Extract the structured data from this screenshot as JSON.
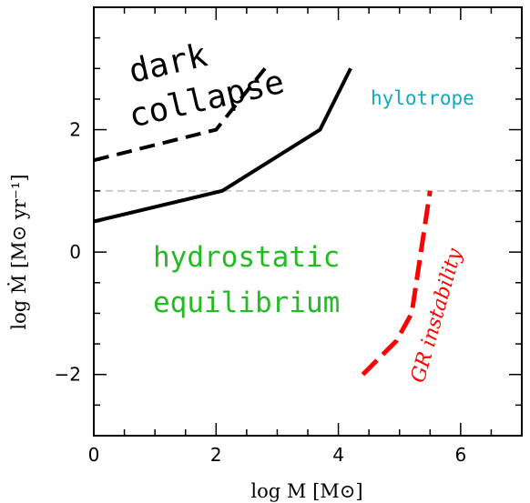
{
  "chart_data": {
    "type": "line",
    "title": "",
    "xlabel": "log M [M⊙]",
    "ylabel": "log Ṁ [M⊙ yr⁻¹]",
    "xlim": [
      0,
      7
    ],
    "ylim": [
      -3,
      4
    ],
    "x_ticks": [
      0,
      2,
      4,
      6
    ],
    "y_ticks": [
      -2,
      0,
      2
    ],
    "x_tick_labels": [
      "0",
      "2",
      "4",
      "6"
    ],
    "y_tick_labels": [
      "−2",
      "0",
      "2"
    ],
    "grid": false,
    "legend": "none",
    "series": [
      {
        "style": "dashed",
        "color": "#000000",
        "x": [
          0,
          2.0,
          2.8
        ],
        "y": [
          1.5,
          2.0,
          3.0
        ]
      },
      {
        "style": "solid",
        "color": "#000000",
        "x": [
          0,
          2.1,
          3.7,
          4.2
        ],
        "y": [
          0.5,
          1.0,
          2.0,
          3.0
        ]
      },
      {
        "style": "dashed",
        "color": "#ff0000",
        "x": [
          4.4,
          4.95,
          5.2,
          5.5
        ],
        "y": [
          -2.0,
          -1.45,
          -1.0,
          1.0
        ]
      }
    ],
    "reference_lines": [
      {
        "orientation": "horizontal",
        "y": 1.0,
        "style": "dashed",
        "color": "#cccccc"
      }
    ],
    "annotations": [
      {
        "text": "dark",
        "color": "#000000"
      },
      {
        "text": "collapse",
        "color": "#000000"
      },
      {
        "text": "hylotrope",
        "color": "#11aabb"
      },
      {
        "text": "hydrostatic",
        "color": "#22bb22"
      },
      {
        "text": "equilibrium",
        "color": "#22bb22"
      },
      {
        "text": "GR instability",
        "color": "#ff0000"
      }
    ]
  }
}
